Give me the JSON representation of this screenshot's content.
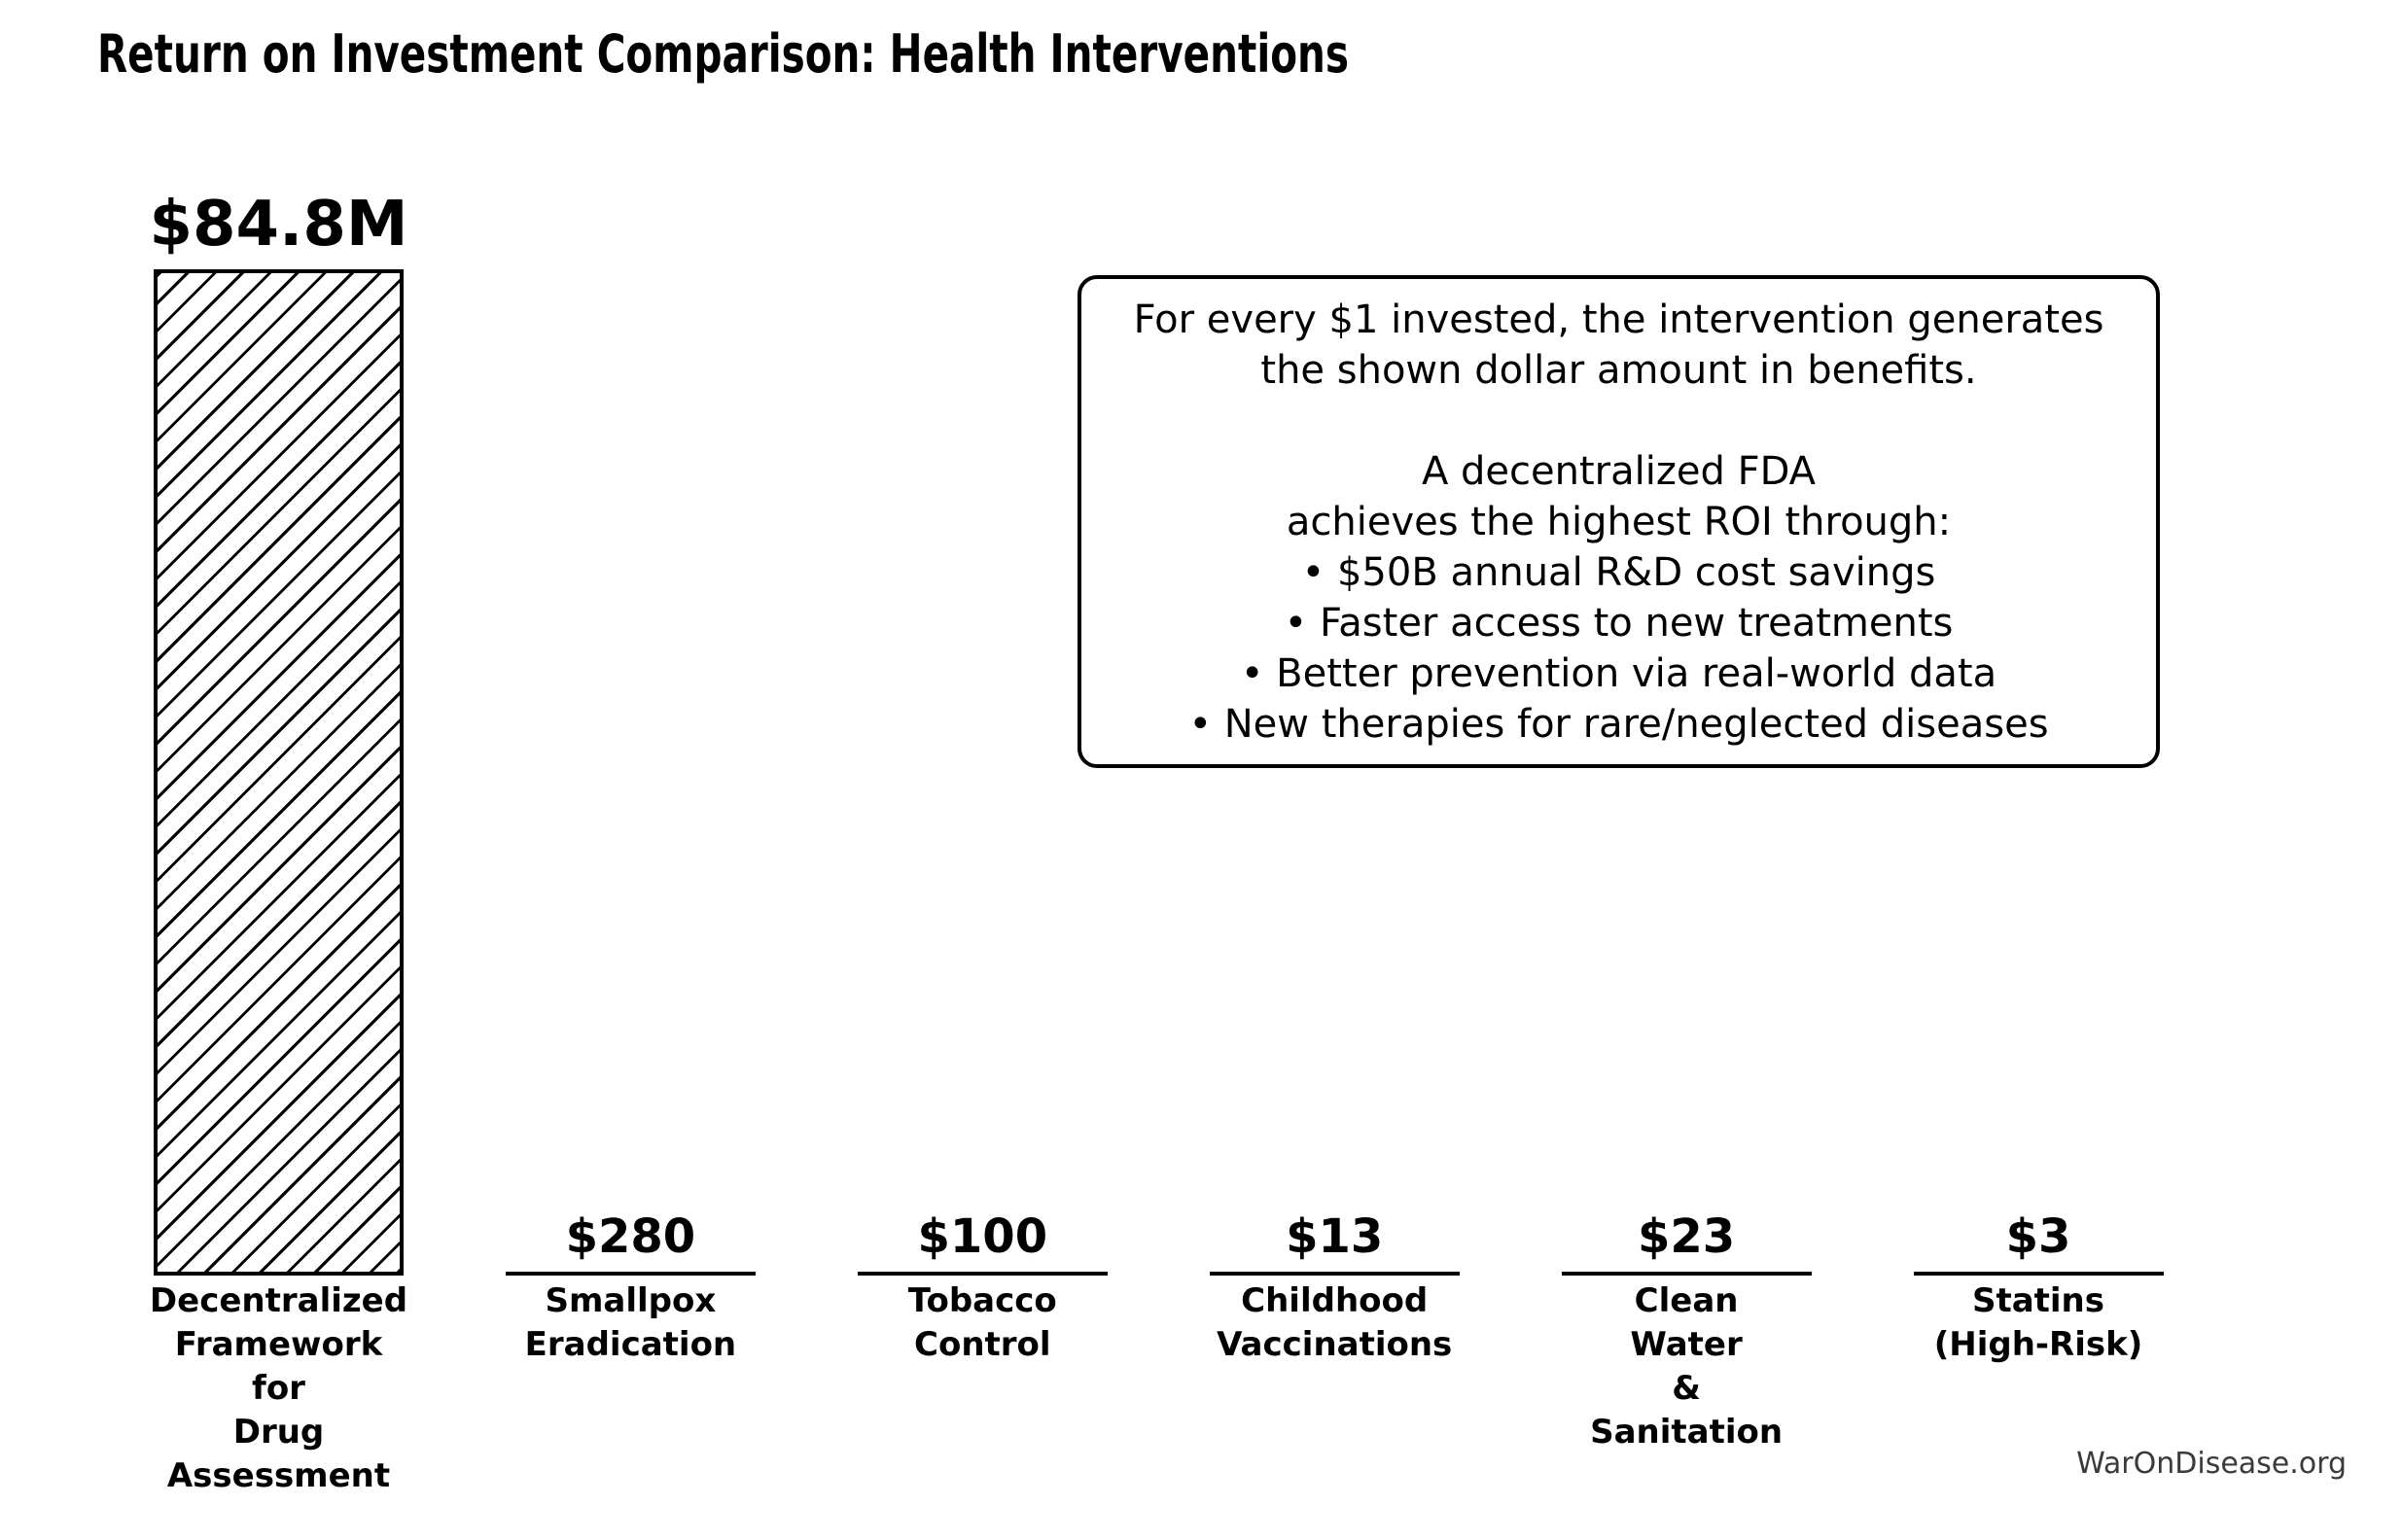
{
  "title": "Return on Investment Comparison: Health Interventions",
  "watermark": "WarOnDisease.org",
  "annotation": {
    "lines": [
      "For every $1 invested, the intervention generates",
      "the shown dollar amount in benefits.",
      "",
      "A decentralized FDA",
      "achieves the highest ROI through:",
      "• $50B annual R&D cost savings",
      "• Faster access to new treatments",
      "• Better prevention via real-world data",
      "• New therapies for rare/neglected diseases"
    ]
  },
  "chart_data": {
    "type": "bar",
    "title": "Return on Investment Comparison: Health Interventions",
    "categories": [
      "Decentralized Framework for Drug Assessment",
      "Smallpox Eradication",
      "Tobacco Control",
      "Childhood Vaccinations",
      "Clean Water & Sanitation",
      "Statins (High-Risk)"
    ],
    "category_label_lines": [
      [
        "Decentralized",
        "Framework",
        "for",
        "Drug",
        "Assessment"
      ],
      [
        "Smallpox",
        "Eradication"
      ],
      [
        "Tobacco",
        "Control"
      ],
      [
        "Childhood",
        "Vaccinations"
      ],
      [
        "Clean",
        "Water",
        "&",
        "Sanitation"
      ],
      [
        "Statins",
        "(High-Risk)"
      ]
    ],
    "values": [
      84800000,
      280,
      100,
      13,
      23,
      3
    ],
    "value_labels": [
      "$84.8M",
      "$280",
      "$100",
      "$13",
      "$23",
      "$3"
    ],
    "ylabel": "",
    "xlabel": "",
    "ylim": [
      0,
      84800000
    ],
    "grid": false,
    "axes_visible": false,
    "bar_style": {
      "fill": "#ffffff",
      "edge": "#000000",
      "hatch": "/"
    },
    "legend": null
  },
  "colors": {
    "text": "#000000",
    "background": "#ffffff",
    "watermark": "#3a3a3a"
  }
}
